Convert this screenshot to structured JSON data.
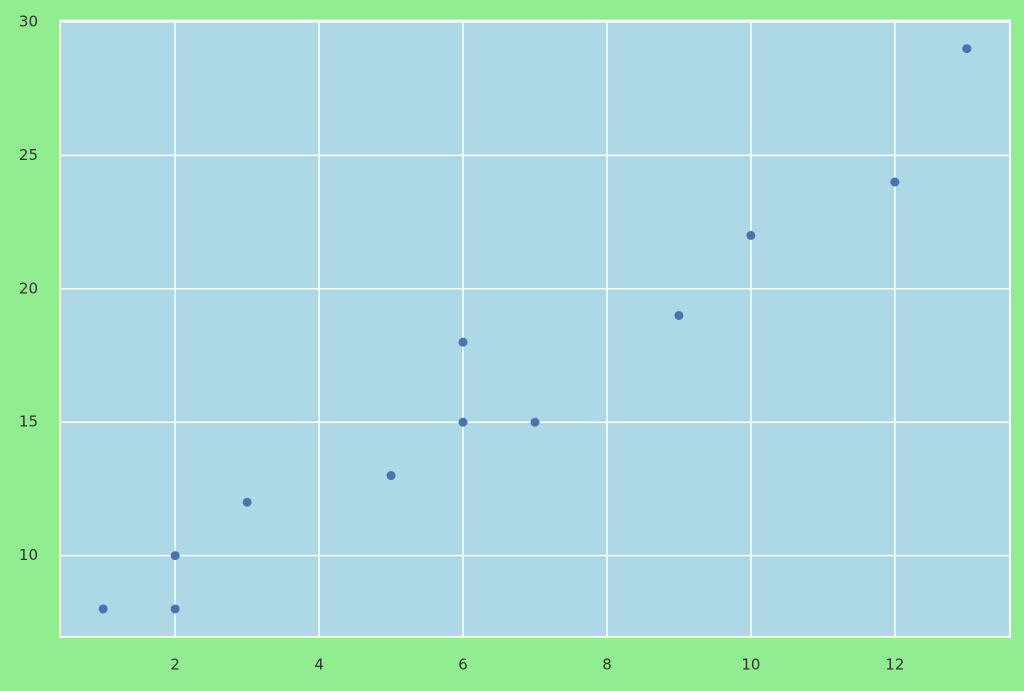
{
  "chart_data": {
    "type": "scatter",
    "x": [
      1,
      2,
      2,
      3,
      5,
      6,
      6,
      7,
      9,
      10,
      12,
      13
    ],
    "series": [
      {
        "color": "#4c72b0",
        "values": [
          8,
          8,
          10,
          12,
          13,
          15,
          18,
          15,
          19,
          22,
          24,
          29
        ]
      }
    ],
    "xlim": [
      0.4,
      13.6
    ],
    "xticks": [
      2,
      4,
      6,
      8,
      10,
      12
    ],
    "ylim": [
      6.95,
      30.05
    ],
    "yticks": [
      10,
      15,
      20,
      25,
      30
    ],
    "grid": true,
    "background": "#90ee90",
    "plot_background": "#add8e6"
  }
}
